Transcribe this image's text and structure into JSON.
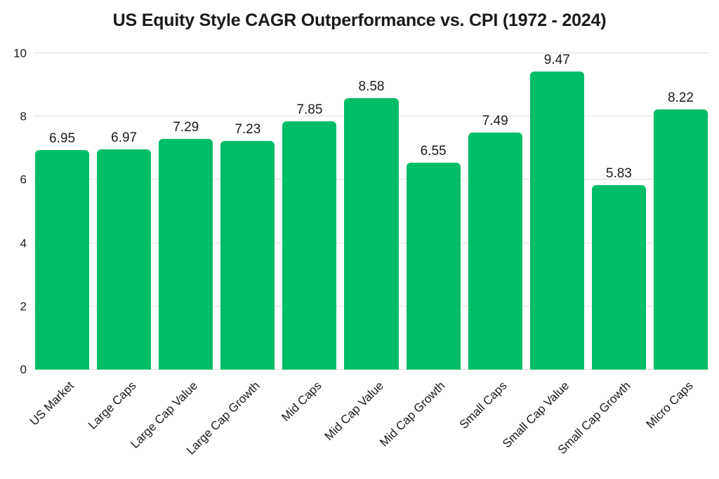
{
  "title": "US Equity Style CAGR Outperformance vs. CPI (1972 - 2024)",
  "chart_data": {
    "type": "bar",
    "title": "US Equity Style CAGR Outperformance vs. CPI (1972 - 2024)",
    "categories": [
      "US Market",
      "Large Caps",
      "Large Cap Value",
      "Large Cap Growth",
      "Mid Caps",
      "Mid Cap Value",
      "Mid Cap Growth",
      "Small Caps",
      "Small Cap Value",
      "Small Cap Growth",
      "Micro Caps"
    ],
    "values": [
      6.95,
      6.97,
      7.29,
      7.23,
      7.85,
      8.58,
      6.55,
      7.49,
      9.47,
      5.83,
      8.22
    ],
    "value_labels": [
      "6.95",
      "6.97",
      "7.29",
      "7.23",
      "7.85",
      "8.58",
      "6.55",
      "7.49",
      "9.47",
      "5.83",
      "8.22"
    ],
    "xlabel": "",
    "ylabel": "",
    "ylim": [
      0,
      10
    ],
    "yticks": [
      0,
      2,
      4,
      6,
      8,
      10
    ],
    "grid": true,
    "legend": false,
    "bar_color": "#00bd67"
  },
  "colors": {
    "bar": "#00bd67",
    "gridline": "#e0e0e0",
    "text": "#1a1a1a",
    "background": "#ffffff"
  }
}
